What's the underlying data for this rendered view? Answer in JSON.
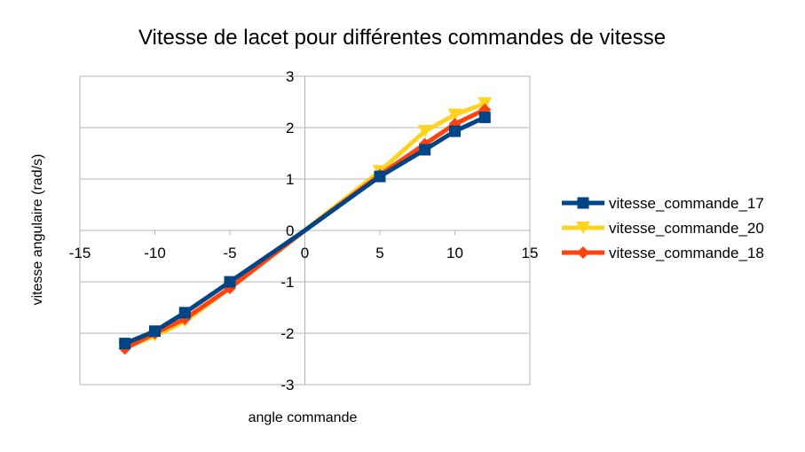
{
  "chart_data": {
    "type": "line",
    "title": "Vitesse de lacet pour différentes commandes de vitesse",
    "xlabel": "angle commande",
    "ylabel": "vitesse angulaire (rad/s)",
    "xlim": [
      -15,
      15
    ],
    "ylim": [
      -3,
      3
    ],
    "x_ticks": [
      "-15",
      "-10",
      "-5",
      "0",
      "5",
      "10",
      "15"
    ],
    "y_ticks": [
      "3",
      "2",
      "1",
      "0",
      "-1",
      "-2",
      "-3"
    ],
    "grid": "horizontal",
    "legend_position": "right",
    "series": [
      {
        "name": "vitesse_commande_20",
        "color": "#ffd320",
        "marker": "triangle-down",
        "x": [
          -12,
          -10,
          -8,
          -5,
          0,
          5,
          8,
          10,
          12
        ],
        "y": [
          -2.28,
          -2.05,
          -1.77,
          -1.12,
          0,
          1.15,
          1.93,
          2.25,
          2.47
        ]
      },
      {
        "name": "vitesse_commande_18",
        "color": "#ff420e",
        "marker": "diamond",
        "x": [
          -12,
          -10,
          -8,
          -5,
          0,
          5,
          8,
          10,
          12
        ],
        "y": [
          -2.3,
          -2.0,
          -1.72,
          -1.12,
          0,
          1.08,
          1.68,
          2.07,
          2.35
        ]
      },
      {
        "name": "vitesse_commande_17",
        "color": "#004586",
        "marker": "square",
        "x": [
          -12,
          -10,
          -8,
          -5,
          0,
          5,
          8,
          10,
          12
        ],
        "y": [
          -2.2,
          -1.96,
          -1.6,
          -1.0,
          0,
          1.05,
          1.57,
          1.93,
          2.2
        ]
      }
    ],
    "legend": [
      {
        "name": "vitesse_commande_17",
        "color": "#004586",
        "marker": "square"
      },
      {
        "name": "vitesse_commande_20",
        "color": "#ffd320",
        "marker": "triangle-down"
      },
      {
        "name": "vitesse_commande_18",
        "color": "#ff420e",
        "marker": "diamond"
      }
    ]
  }
}
